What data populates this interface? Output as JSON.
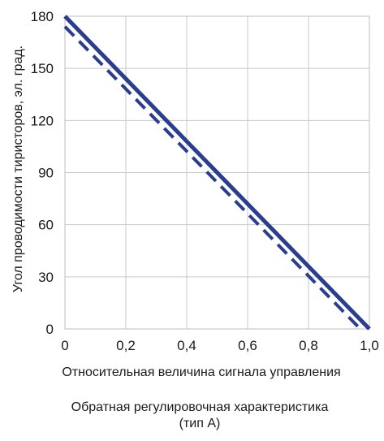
{
  "chart_data": {
    "type": "line",
    "title": "",
    "caption_line1": "Обратная регулировочная характеристика",
    "caption_line2": "(тип А)",
    "xlabel": "Относительная величина сигнала управления",
    "ylabel": "Угол проводимости тиристоров, эл. град.",
    "xlim": [
      0,
      1.0
    ],
    "ylim": [
      0,
      180
    ],
    "xticks": [
      0,
      0.2,
      0.4,
      0.6,
      0.8,
      1.0
    ],
    "xtick_labels": [
      "0",
      "0,2",
      "0,4",
      "0,6",
      "0,8",
      "1,0"
    ],
    "yticks": [
      0,
      30,
      60,
      90,
      120,
      150,
      180
    ],
    "ytick_labels": [
      "0",
      "30",
      "60",
      "90",
      "120",
      "150",
      "180"
    ],
    "grid": true,
    "series": [
      {
        "style": "solid",
        "color": "#2b3d8f",
        "x": [
          0,
          1.0
        ],
        "y": [
          180,
          0
        ]
      },
      {
        "style": "dashed",
        "color": "#2b3d8f",
        "x": [
          0,
          0.97
        ],
        "y": [
          174,
          0
        ]
      }
    ]
  }
}
